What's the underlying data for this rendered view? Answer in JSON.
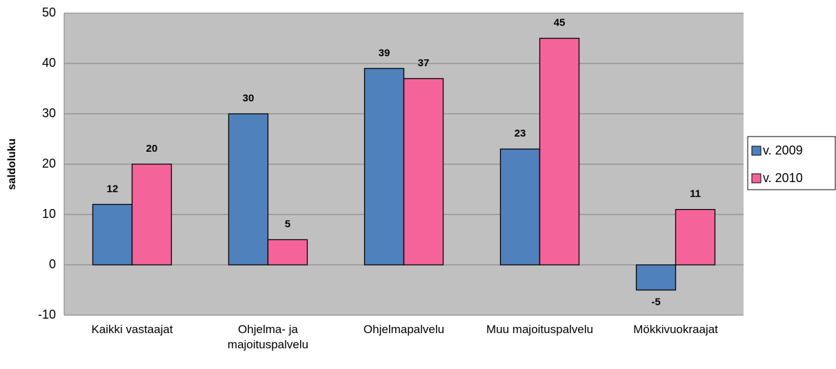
{
  "chart_data": {
    "type": "bar",
    "categories": [
      "Kaikki vastaajat",
      "Ohjelma- ja majoituspalvelu",
      "Ohjelmapalvelu",
      "Muu majoituspalvelu",
      "Mökkivuokraajat"
    ],
    "series": [
      {
        "name": "v. 2009",
        "color": "#4f81bd",
        "values": [
          12,
          30,
          39,
          23,
          -5
        ]
      },
      {
        "name": "v. 2010",
        "color": "#f4649a",
        "values": [
          20,
          5,
          37,
          45,
          11
        ]
      }
    ],
    "y_label": "saldoluku",
    "ylim": [
      -10,
      50
    ],
    "yticks": [
      -10,
      0,
      10,
      20,
      30,
      40,
      50
    ],
    "grid": true,
    "legend": "right"
  }
}
